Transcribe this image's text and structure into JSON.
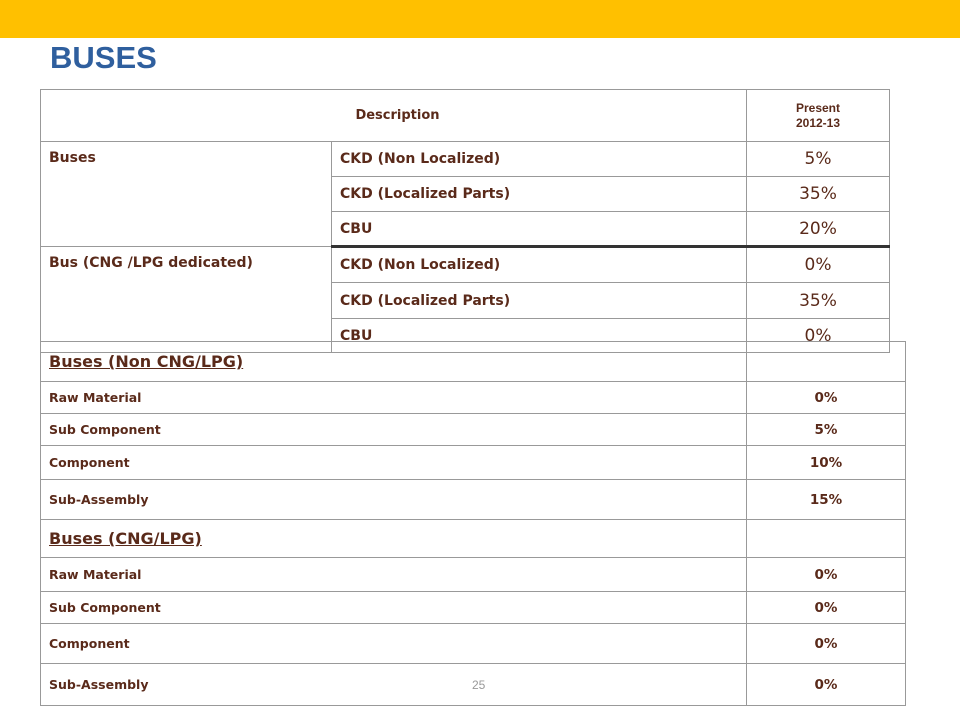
{
  "slide": {
    "title": "BUSES",
    "page_number": "25"
  },
  "colors": {
    "top_band": "#ffc000",
    "title": "#2f5f9e",
    "text": "#5a2a1a"
  },
  "rate_table": {
    "header": {
      "description": "Description",
      "present_line1": "Present",
      "present_line2": "2012-13"
    },
    "groups": [
      {
        "label": "Buses",
        "rows": [
          {
            "type": "CKD (Non Localized)",
            "value": "5%"
          },
          {
            "type": "CKD (Localized Parts)",
            "value": "35%"
          },
          {
            "type": "CBU",
            "value": "20%"
          }
        ]
      },
      {
        "label": "Bus (CNG /LPG dedicated)",
        "rows": [
          {
            "type": "CKD (Non Localized)",
            "value": "0%"
          },
          {
            "type": "CKD (Localized Parts)",
            "value": "35%"
          },
          {
            "type": "CBU",
            "value": "0%"
          }
        ]
      }
    ]
  },
  "localization_table": {
    "sections": [
      {
        "title": "Buses (Non CNG/LPG)",
        "rows": [
          {
            "label": "Raw Material",
            "value": "0%"
          },
          {
            "label": "Sub Component",
            "value": "5%"
          },
          {
            "label": "Component",
            "value": "10%"
          },
          {
            "label": "Sub-Assembly",
            "value": "15%"
          }
        ]
      },
      {
        "title": "Buses (CNG/LPG)",
        "rows": [
          {
            "label": "Raw Material",
            "value": "0%"
          },
          {
            "label": "Sub Component",
            "value": "0%"
          },
          {
            "label": "Component",
            "value": "0%"
          },
          {
            "label": "Sub-Assembly",
            "value": "0%"
          }
        ]
      }
    ]
  }
}
